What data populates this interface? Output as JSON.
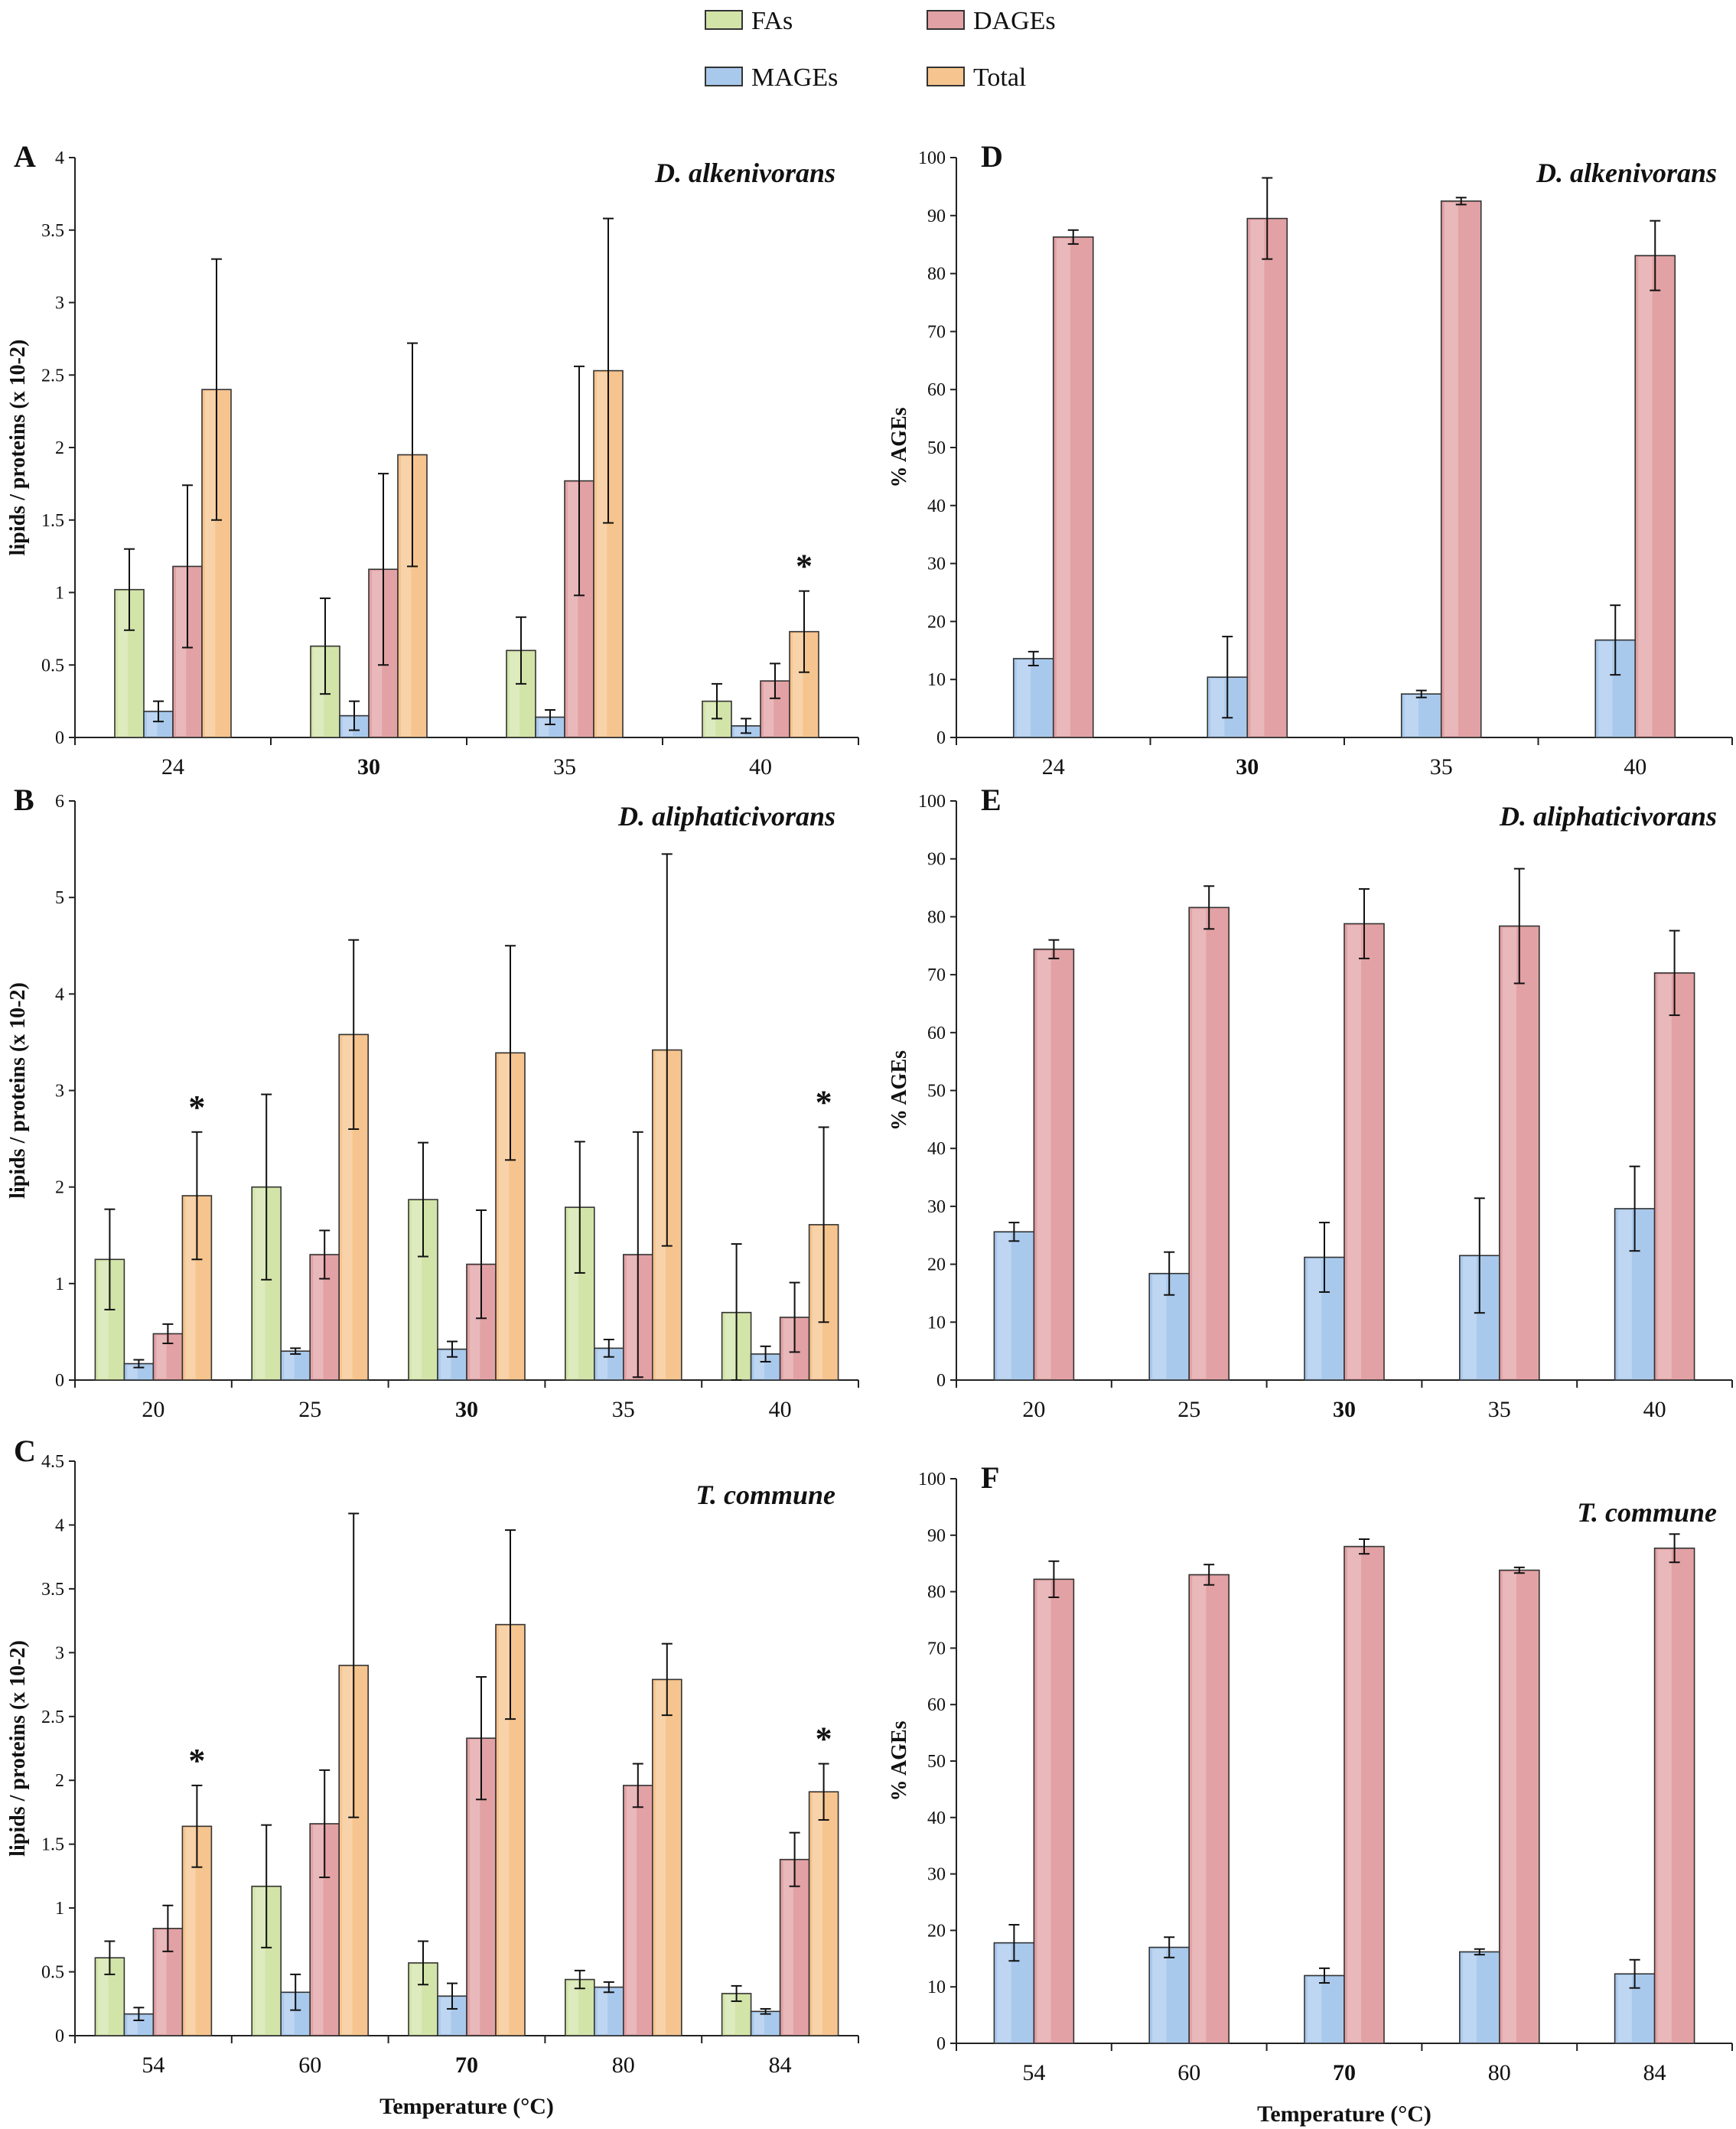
{
  "legend": {
    "items": [
      {
        "name": "FAs",
        "color": "#d2e4a8"
      },
      {
        "name": "DAGEs",
        "color": "#e2a1a4"
      },
      {
        "name": "MAGEs",
        "color": "#a9c9ec"
      },
      {
        "name": "Total",
        "color": "#f6c48e"
      }
    ]
  },
  "significance_marker": "*",
  "chart_data": [
    {
      "id": "A",
      "type": "bar",
      "title": "D. alkenivorans",
      "xlabel": "",
      "ylabel": "lipids / proteins (x 10-2)",
      "ylim": [
        0,
        4
      ],
      "yticks": [
        "0",
        "0.5",
        "1",
        "1.5",
        "2",
        "2.5",
        "3",
        "3.5",
        "4"
      ],
      "categories": [
        "24",
        "30",
        "35",
        "40"
      ],
      "bold_category": "30",
      "series": [
        {
          "name": "FAs",
          "values": [
            1.02,
            0.63,
            0.6,
            0.25
          ],
          "errors": [
            0.28,
            0.33,
            0.23,
            0.12
          ]
        },
        {
          "name": "MAGEs",
          "values": [
            0.18,
            0.15,
            0.14,
            0.08
          ],
          "errors": [
            0.07,
            0.1,
            0.05,
            0.05
          ]
        },
        {
          "name": "DAGEs",
          "values": [
            1.18,
            1.16,
            1.77,
            0.39
          ],
          "errors": [
            0.56,
            0.66,
            0.79,
            0.12
          ]
        },
        {
          "name": "Total",
          "values": [
            2.4,
            1.95,
            2.53,
            0.73
          ],
          "errors": [
            0.9,
            0.77,
            1.05,
            0.28
          ]
        }
      ],
      "significant": [
        {
          "category": "40",
          "series": "Total"
        }
      ]
    },
    {
      "id": "B",
      "type": "bar",
      "title": "D. aliphaticivorans",
      "xlabel": "",
      "ylabel": "lipids / proteins (x 10-2)",
      "ylim": [
        0,
        6
      ],
      "yticks": [
        "0",
        "1",
        "2",
        "3",
        "4",
        "5",
        "6"
      ],
      "categories": [
        "20",
        "25",
        "30",
        "35",
        "40"
      ],
      "bold_category": "30",
      "series": [
        {
          "name": "FAs",
          "values": [
            1.25,
            2.0,
            1.87,
            1.79,
            0.7
          ],
          "errors": [
            0.52,
            0.96,
            0.59,
            0.68,
            0.71
          ]
        },
        {
          "name": "MAGEs",
          "values": [
            0.17,
            0.3,
            0.32,
            0.33,
            0.27
          ],
          "errors": [
            0.04,
            0.03,
            0.08,
            0.09,
            0.08
          ]
        },
        {
          "name": "DAGEs",
          "values": [
            0.48,
            1.3,
            1.2,
            1.3,
            0.65
          ],
          "errors": [
            0.1,
            0.25,
            0.56,
            1.27,
            0.36
          ]
        },
        {
          "name": "Total",
          "values": [
            1.91,
            3.58,
            3.39,
            3.42,
            1.61
          ],
          "errors": [
            0.66,
            0.98,
            1.11,
            2.03,
            1.01
          ]
        }
      ],
      "significant": [
        {
          "category": "20",
          "series": "Total"
        },
        {
          "category": "40",
          "series": "Total"
        }
      ]
    },
    {
      "id": "C",
      "type": "bar",
      "title": "T. commune",
      "xlabel": "Temperature (°C)",
      "ylabel": "lipids / proteins (x 10-2)",
      "ylim": [
        0,
        4.5
      ],
      "yticks": [
        "0",
        "0.5",
        "1",
        "1.5",
        "2",
        "2.5",
        "3",
        "3.5",
        "4",
        "4.5"
      ],
      "categories": [
        "54",
        "60",
        "70",
        "80",
        "84"
      ],
      "bold_category": "70",
      "series": [
        {
          "name": "FAs",
          "values": [
            0.61,
            1.17,
            0.57,
            0.44,
            0.33
          ],
          "errors": [
            0.13,
            0.48,
            0.17,
            0.07,
            0.06
          ]
        },
        {
          "name": "MAGEs",
          "values": [
            0.17,
            0.34,
            0.31,
            0.38,
            0.19
          ],
          "errors": [
            0.05,
            0.14,
            0.1,
            0.04,
            0.02
          ]
        },
        {
          "name": "DAGEs",
          "values": [
            0.84,
            1.66,
            2.33,
            1.96,
            1.38
          ],
          "errors": [
            0.18,
            0.42,
            0.48,
            0.17,
            0.21
          ]
        },
        {
          "name": "Total",
          "values": [
            1.64,
            2.9,
            3.22,
            2.79,
            1.91
          ],
          "errors": [
            0.32,
            1.19,
            0.74,
            0.28,
            0.22
          ]
        }
      ],
      "significant": [
        {
          "category": "54",
          "series": "Total"
        },
        {
          "category": "84",
          "series": "Total"
        }
      ]
    },
    {
      "id": "D",
      "type": "bar",
      "title": "D. alkenivorans",
      "xlabel": "",
      "ylabel": "% AGEs",
      "ylim": [
        0,
        100
      ],
      "yticks": [
        "0",
        "10",
        "20",
        "30",
        "40",
        "50",
        "60",
        "70",
        "80",
        "90",
        "100"
      ],
      "categories": [
        "24",
        "30",
        "35",
        "40"
      ],
      "bold_category": "30",
      "series": [
        {
          "name": "MAGEs",
          "values": [
            13.6,
            10.4,
            7.5,
            16.8
          ],
          "errors": [
            1.2,
            7.0,
            0.6,
            6.0
          ]
        },
        {
          "name": "DAGEs",
          "values": [
            86.3,
            89.5,
            92.5,
            83.1
          ],
          "errors": [
            1.2,
            7.0,
            0.6,
            6.0
          ]
        }
      ],
      "significant": []
    },
    {
      "id": "E",
      "type": "bar",
      "title": "D. aliphaticivorans",
      "xlabel": "",
      "ylabel": "% AGEs",
      "ylim": [
        0,
        100
      ],
      "yticks": [
        "0",
        "10",
        "20",
        "30",
        "40",
        "50",
        "60",
        "70",
        "80",
        "90",
        "100"
      ],
      "categories": [
        "20",
        "25",
        "30",
        "35",
        "40"
      ],
      "bold_category": "30",
      "series": [
        {
          "name": "MAGEs",
          "values": [
            25.6,
            18.4,
            21.2,
            21.5,
            29.6
          ],
          "errors": [
            1.6,
            3.7,
            6.0,
            9.9,
            7.3
          ]
        },
        {
          "name": "DAGEs",
          "values": [
            74.4,
            81.6,
            78.8,
            78.4,
            70.3
          ],
          "errors": [
            1.6,
            3.7,
            6.0,
            9.9,
            7.3
          ]
        }
      ],
      "significant": []
    },
    {
      "id": "F",
      "type": "bar",
      "title": "T. commune",
      "xlabel": "Temperature (°C)",
      "ylabel": "% AGEs",
      "ylim": [
        0,
        100
      ],
      "yticks": [
        "0",
        "10",
        "20",
        "30",
        "40",
        "50",
        "60",
        "70",
        "80",
        "90",
        "100"
      ],
      "categories": [
        "54",
        "60",
        "70",
        "80",
        "84"
      ],
      "bold_category": "70",
      "series": [
        {
          "name": "MAGEs",
          "values": [
            17.8,
            17.0,
            12.0,
            16.2,
            12.3
          ],
          "errors": [
            3.2,
            1.8,
            1.3,
            0.5,
            2.5
          ]
        },
        {
          "name": "DAGEs",
          "values": [
            82.2,
            83.0,
            88.0,
            83.8,
            87.7
          ],
          "errors": [
            3.2,
            1.8,
            1.3,
            0.5,
            2.5
          ]
        }
      ],
      "significant": []
    }
  ]
}
